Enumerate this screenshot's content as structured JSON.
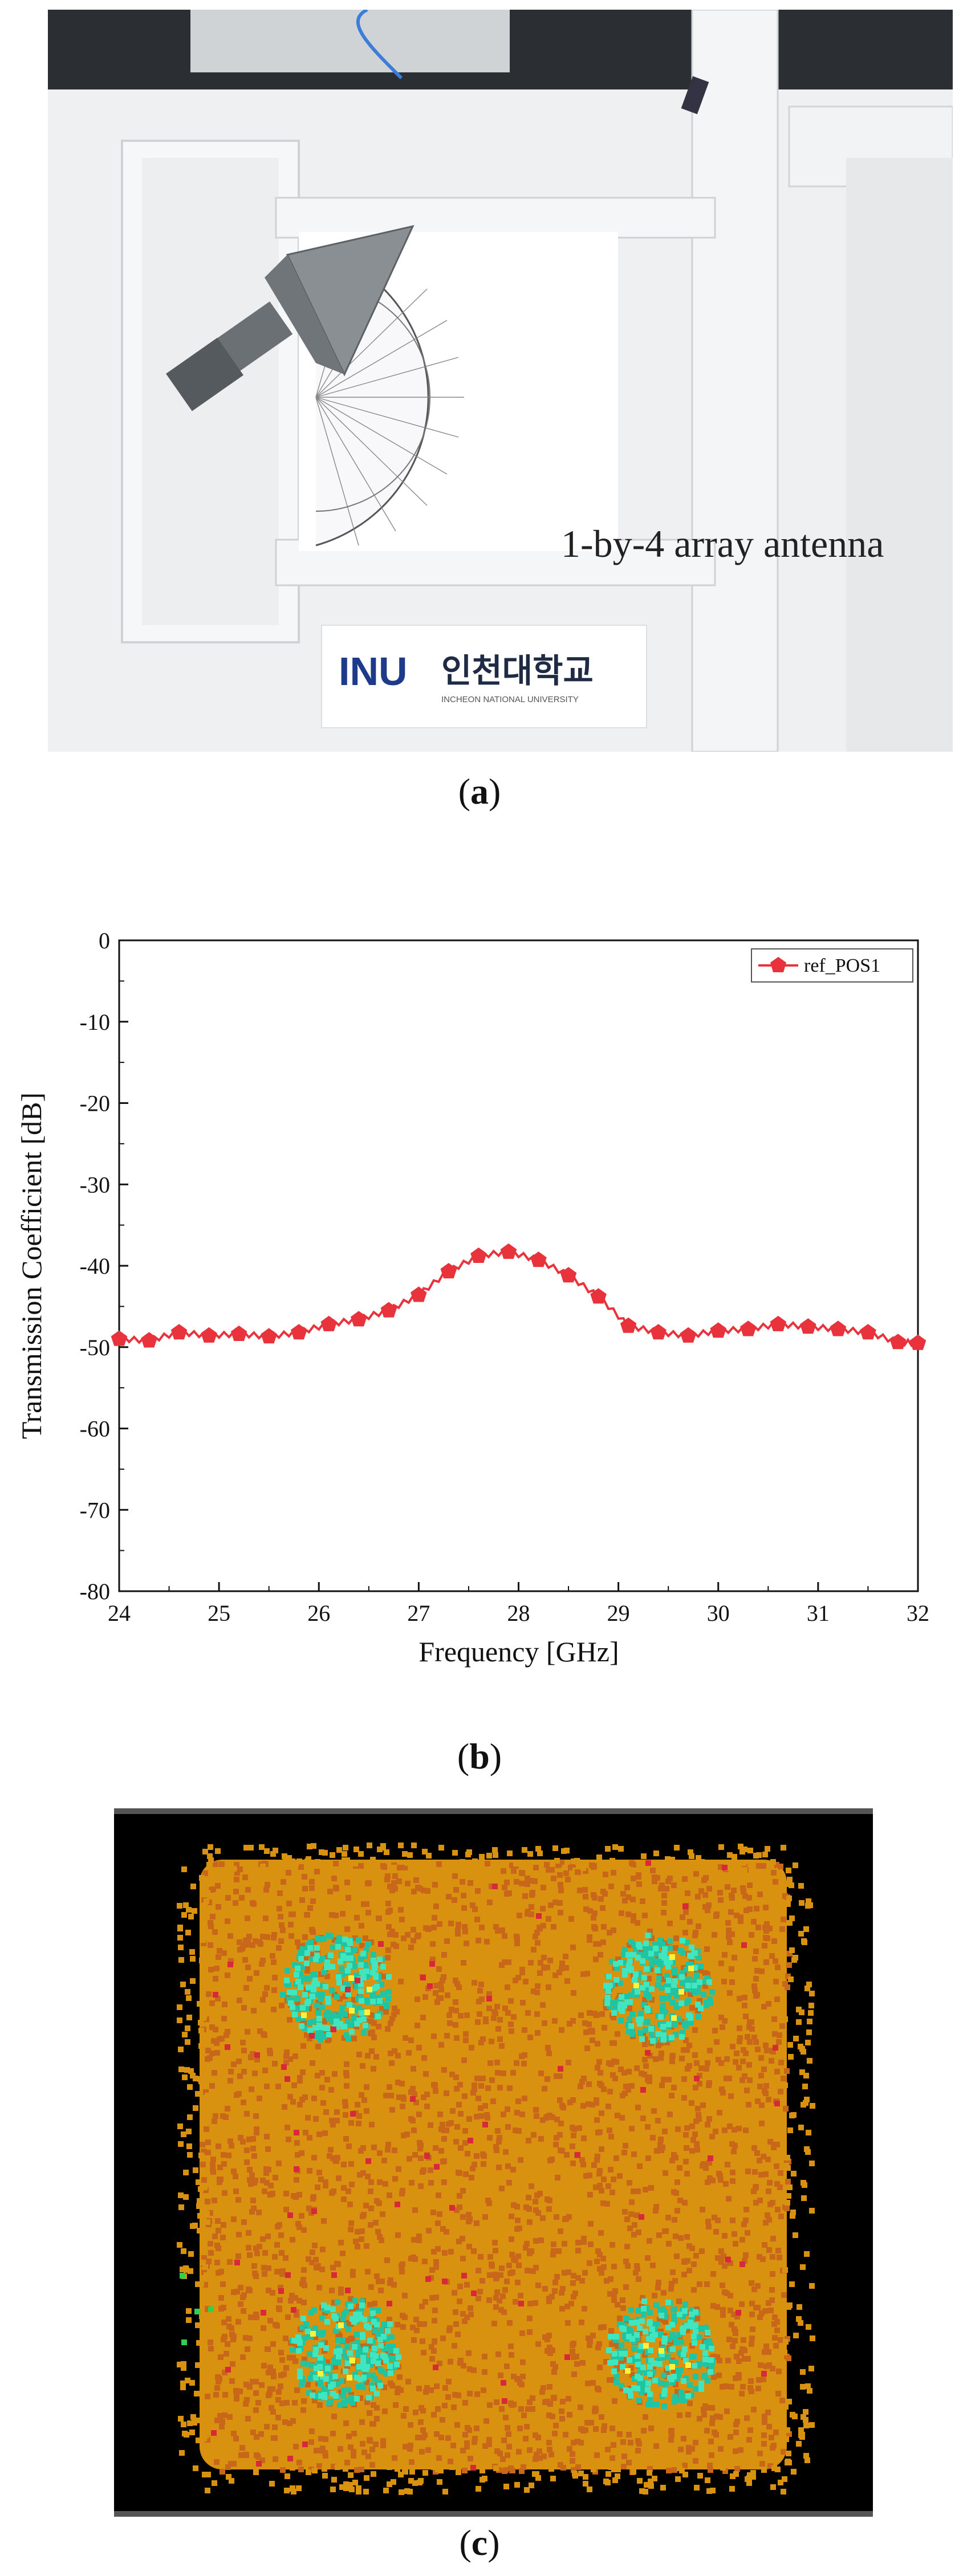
{
  "panel_a": {
    "label": "1-by-4 array antenna",
    "logo_text": "INU",
    "logo_korean": "인천대학교",
    "logo_sub": "INCHEON NATIONAL UNIVERSITY",
    "caption_letter": "a"
  },
  "panel_b": {
    "caption_letter": "b"
  },
  "panel_c": {
    "caption_letter": "c",
    "colors": {
      "background": "#000000",
      "field_main": "#d9920f",
      "field_dark": "#c8661a",
      "hotspot": "#1fc4a2",
      "hotspot_bright": "#3fe6c0",
      "speckle_red": "#d9283c",
      "speckle_yellow": "#fff23a",
      "speckle_green": "#2fd24a",
      "border": "#555555"
    }
  },
  "chart_data": {
    "type": "line",
    "title": "",
    "xlabel": "Frequency [GHz]",
    "ylabel": "Transmission Coefficient [dB]",
    "xlim": [
      24,
      32
    ],
    "ylim": [
      -80,
      0
    ],
    "x_ticks": [
      "24",
      "25",
      "26",
      "27",
      "28",
      "29",
      "30",
      "31",
      "32"
    ],
    "y_ticks": [
      "0",
      "-10",
      "-20",
      "-30",
      "-40",
      "-50",
      "-60",
      "-70",
      "-80"
    ],
    "legend_position": "top-right",
    "color": "#e8323c",
    "series": [
      {
        "name": "ref_POS1",
        "x": [
          24.0,
          24.3,
          24.6,
          24.9,
          25.2,
          25.5,
          25.8,
          26.1,
          26.4,
          26.7,
          27.0,
          27.3,
          27.6,
          27.9,
          28.2,
          28.5,
          28.8,
          29.1,
          29.4,
          29.7,
          30.0,
          30.3,
          30.6,
          30.9,
          31.2,
          31.5,
          31.8,
          32.0
        ],
        "y": [
          -49.0,
          -49.2,
          -48.2,
          -48.6,
          -48.4,
          -48.7,
          -48.2,
          -47.2,
          -46.6,
          -45.5,
          -43.6,
          -40.7,
          -38.8,
          -38.3,
          -39.3,
          -41.2,
          -43.8,
          -47.4,
          -48.2,
          -48.6,
          -48.0,
          -47.8,
          -47.2,
          -47.5,
          -47.8,
          -48.2,
          -49.4,
          -49.5
        ]
      }
    ]
  }
}
